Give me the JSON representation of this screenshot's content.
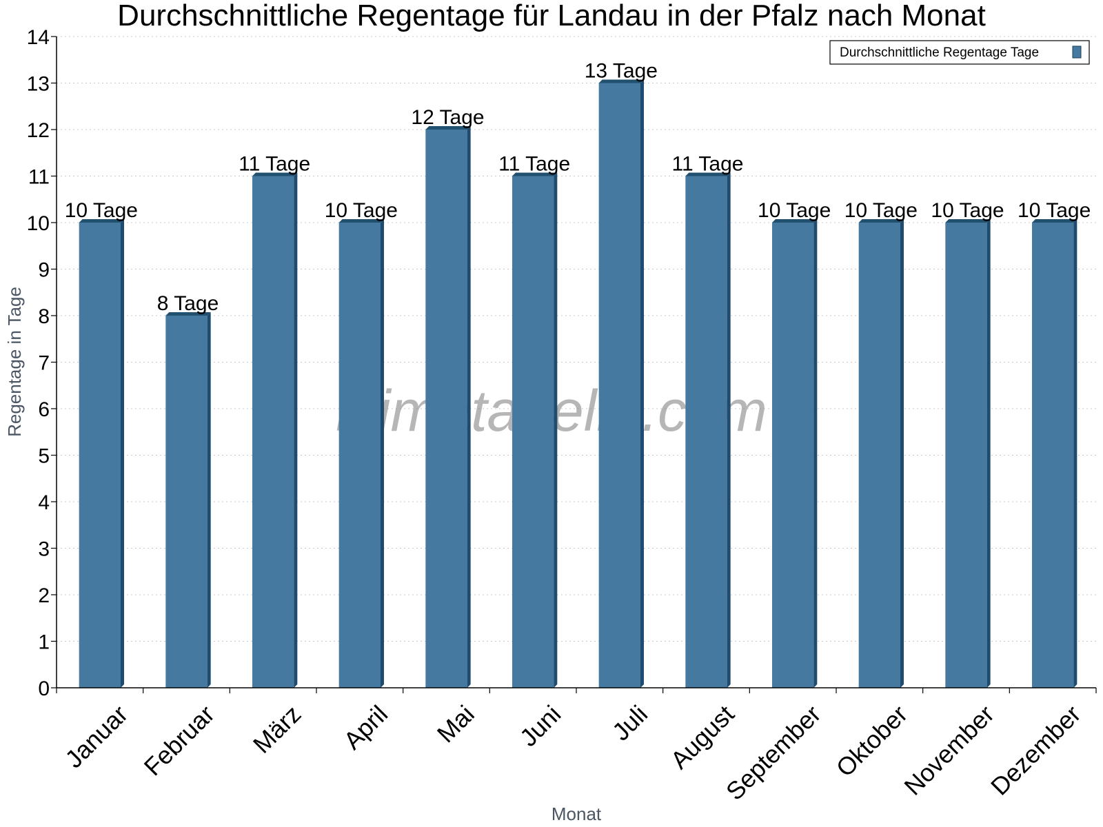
{
  "chart_data": {
    "type": "bar",
    "title": "Durchschnittliche Regentage für Landau in der Pfalz nach Monat",
    "xlabel": "Monat",
    "ylabel": "Regentage in Tage",
    "ylim": [
      0,
      14
    ],
    "yticks": [
      0,
      1,
      2,
      3,
      4,
      5,
      6,
      7,
      8,
      9,
      10,
      11,
      12,
      13,
      14
    ],
    "grid": true,
    "legend_position": "top-right",
    "categories": [
      "Januar",
      "Februar",
      "März",
      "April",
      "Mai",
      "Juni",
      "Juli",
      "August",
      "September",
      "Oktober",
      "November",
      "Dezember"
    ],
    "series": [
      {
        "name": "Durchschnittliche Regentage Tage",
        "color": "#4679a0",
        "values": [
          10,
          8,
          11,
          10,
          12,
          11,
          13,
          11,
          10,
          10,
          10,
          10
        ],
        "labels": [
          "10 Tage",
          "8 Tage",
          "11 Tage",
          "10 Tage",
          "12 Tage",
          "11 Tage",
          "13 Tage",
          "11 Tage",
          "10 Tage",
          "10 Tage",
          "10 Tage",
          "10 Tage"
        ]
      }
    ]
  },
  "watermark": "klimatabelle.com"
}
